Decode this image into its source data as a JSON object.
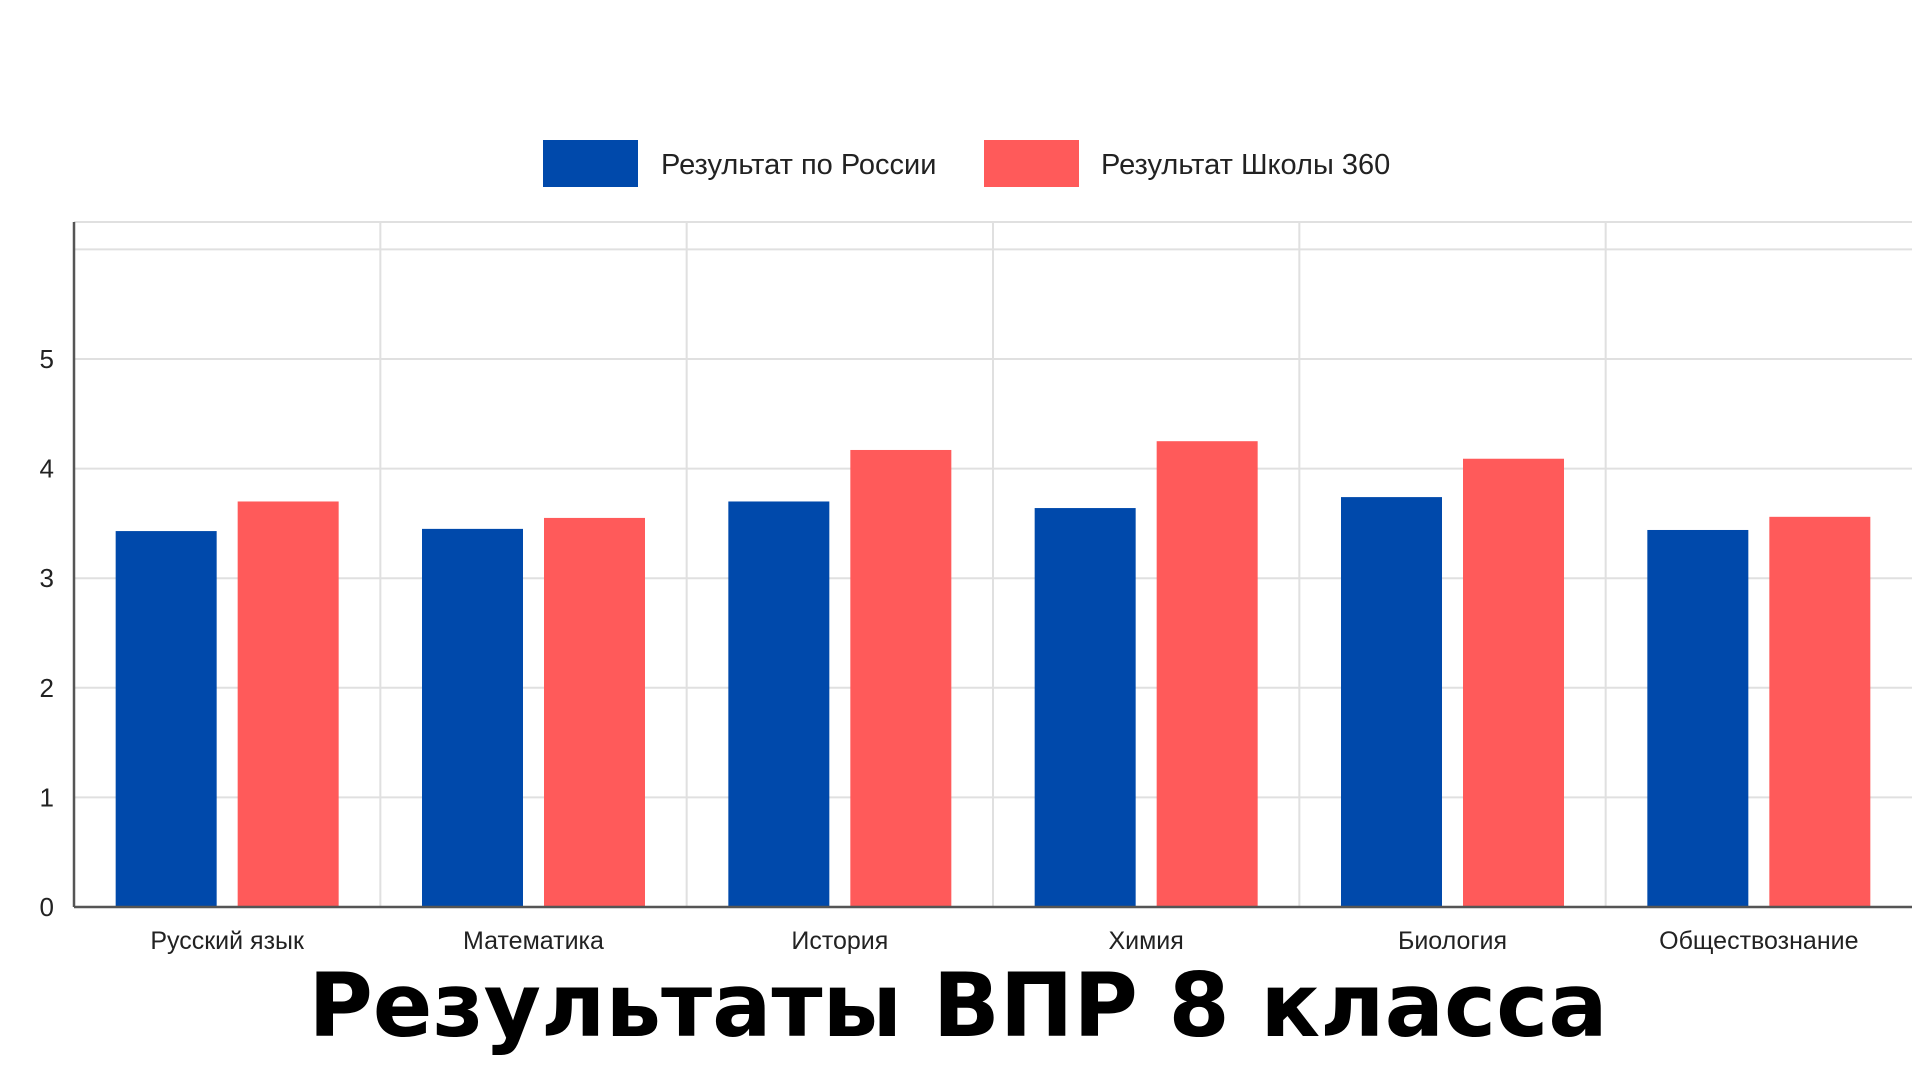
{
  "chart_data": {
    "type": "bar",
    "title": "Результаты ВПР 8 класса",
    "xlabel": "",
    "ylabel": "",
    "categories": [
      "Русский язык",
      "Математика",
      "История",
      "Химия",
      "Биология",
      "Обществознание"
    ],
    "series": [
      {
        "name": "Результат по России",
        "color": "#0049AB",
        "values": [
          3.43,
          3.45,
          3.7,
          3.64,
          3.74,
          3.44
        ]
      },
      {
        "name": "Результат Школы 360",
        "color": "#FF5A5A",
        "values": [
          3.7,
          3.55,
          4.17,
          4.25,
          4.09,
          3.56
        ]
      }
    ],
    "yticks": [
      "0",
      "1",
      "2",
      "3",
      "4",
      "5"
    ],
    "ylim": [
      0,
      6.25
    ],
    "grid": true,
    "legend_position": "top-center"
  }
}
